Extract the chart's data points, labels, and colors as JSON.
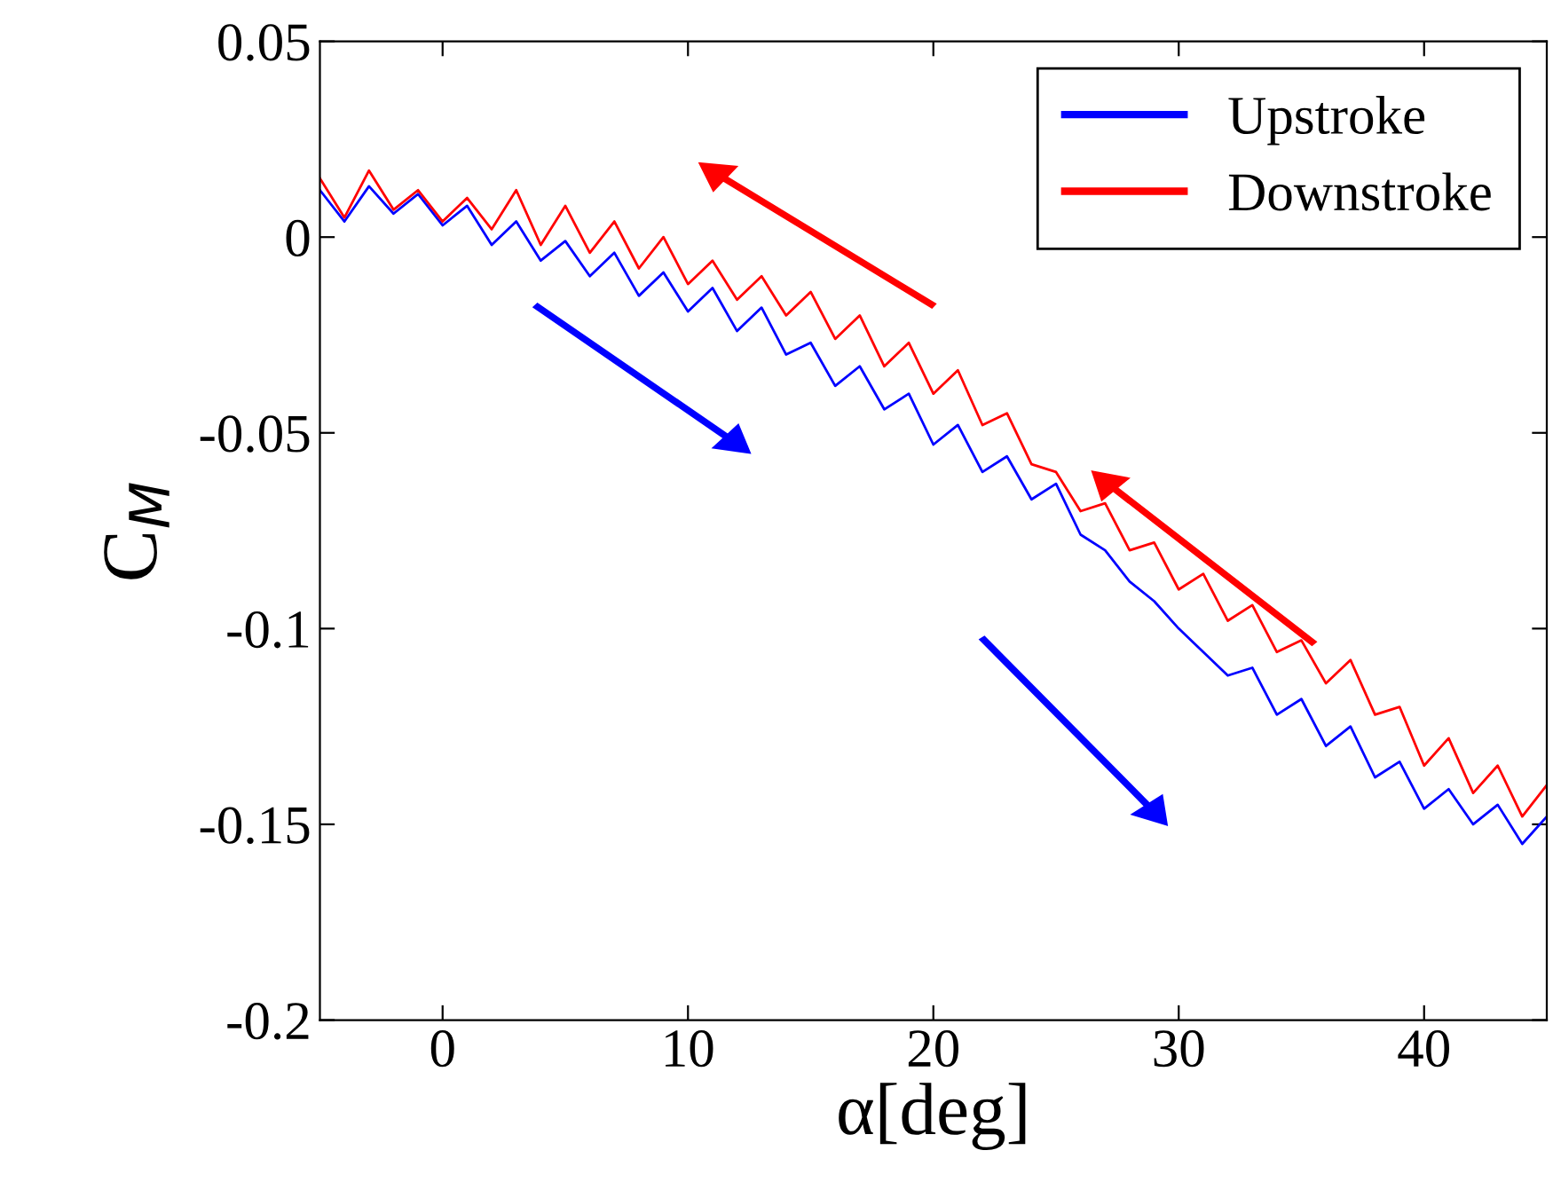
{
  "chart_data": {
    "type": "line",
    "xlabel": "α[deg]",
    "ylabel": "C$_{M}$",
    "x": [
      -5,
      -4,
      -3,
      -2,
      -1,
      0,
      1,
      2,
      3,
      4,
      5,
      6,
      7,
      8,
      9,
      10,
      11,
      12,
      13,
      14,
      15,
      16,
      17,
      18,
      19,
      20,
      21,
      22,
      23,
      24,
      25,
      26,
      27,
      28,
      29,
      30,
      31,
      32,
      33,
      34,
      35,
      36,
      37,
      38,
      39,
      40,
      41,
      42,
      43,
      44,
      45
    ],
    "series": [
      {
        "name": "Upstroke",
        "color": "#0000ff",
        "values": [
          0.012,
          0.004,
          0.013,
          0.006,
          0.011,
          0.003,
          0.008,
          -0.002,
          0.004,
          -0.006,
          -0.001,
          -0.01,
          -0.004,
          -0.015,
          -0.009,
          -0.019,
          -0.013,
          -0.024,
          -0.018,
          -0.03,
          -0.027,
          -0.038,
          -0.033,
          -0.044,
          -0.04,
          -0.053,
          -0.048,
          -0.06,
          -0.056,
          -0.067,
          -0.063,
          -0.076,
          -0.08,
          -0.088,
          -0.093,
          -0.1,
          -0.106,
          -0.112,
          -0.11,
          -0.122,
          -0.118,
          -0.13,
          -0.125,
          -0.138,
          -0.134,
          -0.146,
          -0.141,
          -0.15,
          -0.145,
          -0.155,
          -0.148
        ]
      },
      {
        "name": "Downstroke",
        "color": "#ff0000",
        "values": [
          0.015,
          0.005,
          0.017,
          0.007,
          0.012,
          0.004,
          0.01,
          0.002,
          0.012,
          -0.002,
          0.008,
          -0.004,
          0.004,
          -0.008,
          0.0,
          -0.012,
          -0.006,
          -0.016,
          -0.01,
          -0.02,
          -0.014,
          -0.026,
          -0.02,
          -0.033,
          -0.027,
          -0.04,
          -0.034,
          -0.048,
          -0.045,
          -0.058,
          -0.06,
          -0.07,
          -0.068,
          -0.08,
          -0.078,
          -0.09,
          -0.086,
          -0.098,
          -0.094,
          -0.106,
          -0.103,
          -0.114,
          -0.108,
          -0.122,
          -0.12,
          -0.135,
          -0.128,
          -0.142,
          -0.135,
          -0.148,
          -0.14
        ]
      }
    ],
    "xlim": [
      -5,
      45
    ],
    "xticks": [
      0,
      10,
      20,
      30,
      40
    ],
    "ylim": [
      -0.2,
      0.05
    ],
    "yticks": [
      -0.2,
      -0.15,
      -0.1,
      -0.05,
      0,
      0.05
    ],
    "grid": false,
    "legend": "top right",
    "marker": "none",
    "line_style": "solid"
  }
}
